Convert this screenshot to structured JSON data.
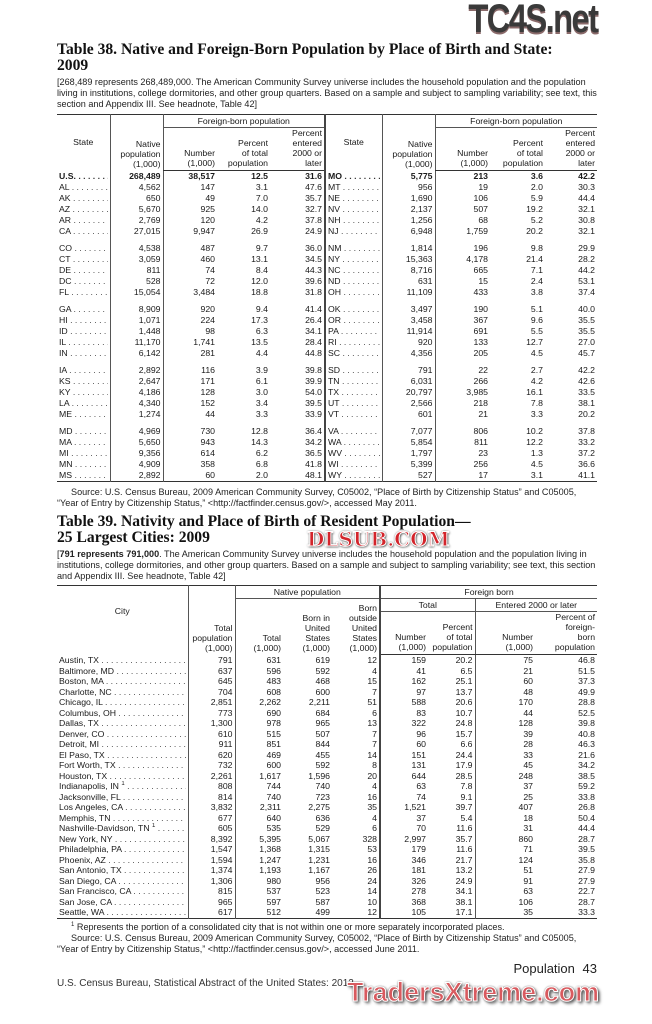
{
  "table38": {
    "title": "Table 38. Native and Foreign-Born Population by Place of Birth and State:\n2009",
    "headnote": "[268,489 represents 268,489,000. The American Community Survey universe includes the household population and the population living in institutions, college dormitories, and other group quarters. Based on a sample and subject to sampling variability; see text, this section and Appendix III. See headnote, Table 42]",
    "headers": {
      "state": "State",
      "native": "Native\npopulation\n(1,000)",
      "foreign_group": "Foreign-born population",
      "number": "Number\n(1,000)",
      "percent_total": "Percent\nof total\npopulation",
      "percent_entered": "Percent\nentered\n2000 or\nlater"
    },
    "left_groups": [
      [
        [
          "U.S.",
          "268,489",
          "38,517",
          "12.5",
          "31.6"
        ],
        [
          "AL",
          "4,562",
          "147",
          "3.1",
          "47.6"
        ],
        [
          "AK",
          "650",
          "49",
          "7.0",
          "35.7"
        ],
        [
          "AZ",
          "5,670",
          "925",
          "14.0",
          "32.7"
        ],
        [
          "AR",
          "2,769",
          "120",
          "4.2",
          "37.8"
        ],
        [
          "CA",
          "27,015",
          "9,947",
          "26.9",
          "24.9"
        ]
      ],
      [
        [
          "CO",
          "4,538",
          "487",
          "9.7",
          "36.0"
        ],
        [
          "CT",
          "3,059",
          "460",
          "13.1",
          "34.5"
        ],
        [
          "DE",
          "811",
          "74",
          "8.4",
          "44.3"
        ],
        [
          "DC",
          "528",
          "72",
          "12.0",
          "39.6"
        ],
        [
          "FL",
          "15,054",
          "3,484",
          "18.8",
          "31.8"
        ]
      ],
      [
        [
          "GA",
          "8,909",
          "920",
          "9.4",
          "41.4"
        ],
        [
          "HI",
          "1,071",
          "224",
          "17.3",
          "26.4"
        ],
        [
          "ID",
          "1,448",
          "98",
          "6.3",
          "34.1"
        ],
        [
          "IL",
          "11,170",
          "1,741",
          "13.5",
          "28.4"
        ],
        [
          "IN",
          "6,142",
          "281",
          "4.4",
          "44.8"
        ]
      ],
      [
        [
          "IA",
          "2,892",
          "116",
          "3.9",
          "39.8"
        ],
        [
          "KS",
          "2,647",
          "171",
          "6.1",
          "39.9"
        ],
        [
          "KY",
          "4,186",
          "128",
          "3.0",
          "54.0"
        ],
        [
          "LA",
          "4,340",
          "152",
          "3.4",
          "39.5"
        ],
        [
          "ME",
          "1,274",
          "44",
          "3.3",
          "33.9"
        ]
      ],
      [
        [
          "MD",
          "4,969",
          "730",
          "12.8",
          "36.4"
        ],
        [
          "MA",
          "5,650",
          "943",
          "14.3",
          "34.2"
        ],
        [
          "MI",
          "9,356",
          "614",
          "6.2",
          "36.5"
        ],
        [
          "MN",
          "4,909",
          "358",
          "6.8",
          "41.8"
        ],
        [
          "MS",
          "2,892",
          "60",
          "2.0",
          "48.1"
        ]
      ]
    ],
    "right_groups": [
      [
        [
          "MO",
          "5,775",
          "213",
          "3.6",
          "42.2"
        ],
        [
          "MT",
          "956",
          "19",
          "2.0",
          "30.3"
        ],
        [
          "NE",
          "1,690",
          "106",
          "5.9",
          "44.4"
        ],
        [
          "NV",
          "2,137",
          "507",
          "19.2",
          "32.1"
        ],
        [
          "NH",
          "1,256",
          "68",
          "5.2",
          "30.8"
        ],
        [
          "NJ",
          "6,948",
          "1,759",
          "20.2",
          "32.1"
        ]
      ],
      [
        [
          "NM",
          "1,814",
          "196",
          "9.8",
          "29.9"
        ],
        [
          "NY",
          "15,363",
          "4,178",
          "21.4",
          "28.2"
        ],
        [
          "NC",
          "8,716",
          "665",
          "7.1",
          "44.2"
        ],
        [
          "ND",
          "631",
          "15",
          "2.4",
          "53.1"
        ],
        [
          "OH",
          "11,109",
          "433",
          "3.8",
          "37.4"
        ]
      ],
      [
        [
          "OK",
          "3,497",
          "190",
          "5.1",
          "40.0"
        ],
        [
          "OR",
          "3,458",
          "367",
          "9.6",
          "35.5"
        ],
        [
          "PA",
          "11,914",
          "691",
          "5.5",
          "35.5"
        ],
        [
          "RI",
          "920",
          "133",
          "12.7",
          "27.0"
        ],
        [
          "SC",
          "4,356",
          "205",
          "4.5",
          "45.7"
        ]
      ],
      [
        [
          "SD",
          "791",
          "22",
          "2.7",
          "42.2"
        ],
        [
          "TN",
          "6,031",
          "266",
          "4.2",
          "42.6"
        ],
        [
          "TX",
          "20,797",
          "3,985",
          "16.1",
          "33.5"
        ],
        [
          "UT",
          "2,566",
          "218",
          "7.8",
          "38.1"
        ],
        [
          "VT",
          "601",
          "21",
          "3.3",
          "20.2"
        ]
      ],
      [
        [
          "VA",
          "7,077",
          "806",
          "10.2",
          "37.8"
        ],
        [
          "WA",
          "5,854",
          "811",
          "12.2",
          "33.2"
        ],
        [
          "WV",
          "1,797",
          "23",
          "1.3",
          "37.2"
        ],
        [
          "WI",
          "5,399",
          "256",
          "4.5",
          "36.6"
        ],
        [
          "WY",
          "527",
          "17",
          "3.1",
          "41.1"
        ]
      ]
    ],
    "source": "Source: U.S. Census Bureau, 2009 American Community Survey, C05002, “Place of Birth by Citizenship Status” and C05005, “Year of Entry by Citizenship Status,” <http://factfinder.census.gov/>, accessed May 2011."
  },
  "table39": {
    "title": "Table 39. Nativity and Place of Birth of Resident Population—\n25 Largest Cities: 2009",
    "headnote_bold": "791 represents 791,000",
    "headnote": ". The American Community Survey universe includes the household population and the population living in institutions, college dormitories, and other group quarters. Based on a sample and subject to sampling variability; see text, this section and Appendix III. See headnote, Table 42]",
    "headers": {
      "city": "City",
      "total_population": "Total\npopulation\n(1,000)",
      "native_group": "Native population",
      "native_total": "Total\n(1,000)",
      "born_us": "Born in\nUnited\nStates\n(1,000)",
      "born_outside": "Born\noutside\nUnited\nStates\n(1,000)",
      "foreign_group": "Foreign born",
      "total_group": "Total",
      "entered_group": "Entered 2000 or later",
      "fb_number": "Number\n(1,000)",
      "fb_percent": "Percent\nof total\npopulation",
      "en_number": "Number\n(1,000)",
      "en_percent": "Percent of\nforeign-\nborn\npopulation"
    },
    "rows": [
      [
        "Austin, TX",
        "",
        "791",
        "631",
        "619",
        "12",
        "159",
        "20.2",
        "75",
        "46.8"
      ],
      [
        "Baltimore, MD",
        "",
        "637",
        "596",
        "592",
        "4",
        "41",
        "6.5",
        "21",
        "51.5"
      ],
      [
        "Boston, MA",
        "",
        "645",
        "483",
        "468",
        "15",
        "162",
        "25.1",
        "60",
        "37.3"
      ],
      [
        "Charlotte, NC",
        "",
        "704",
        "608",
        "600",
        "7",
        "97",
        "13.7",
        "48",
        "49.9"
      ],
      [
        "Chicago, IL",
        "",
        "2,851",
        "2,262",
        "2,211",
        "51",
        "588",
        "20.6",
        "170",
        "28.8"
      ],
      [
        "Columbus, OH",
        "",
        "773",
        "690",
        "684",
        "6",
        "83",
        "10.7",
        "44",
        "52.5"
      ],
      [
        "Dallas, TX",
        "",
        "1,300",
        "978",
        "965",
        "13",
        "322",
        "24.8",
        "128",
        "39.8"
      ],
      [
        "Denver, CO",
        "",
        "610",
        "515",
        "507",
        "7",
        "96",
        "15.7",
        "39",
        "40.8"
      ],
      [
        "Detroit, MI",
        "",
        "911",
        "851",
        "844",
        "7",
        "60",
        "6.6",
        "28",
        "46.3"
      ],
      [
        "El Paso, TX",
        "",
        "620",
        "469",
        "455",
        "14",
        "151",
        "24.4",
        "33",
        "21.6"
      ],
      [
        "Fort Worth, TX",
        "",
        "732",
        "600",
        "592",
        "8",
        "131",
        "17.9",
        "45",
        "34.2"
      ],
      [
        "Houston, TX",
        "",
        "2,261",
        "1,617",
        "1,596",
        "20",
        "644",
        "28.5",
        "248",
        "38.5"
      ],
      [
        "Indianapolis, IN",
        "1",
        "808",
        "744",
        "740",
        "4",
        "63",
        "7.8",
        "37",
        "59.2"
      ],
      [
        "Jacksonville, FL",
        "",
        "814",
        "740",
        "723",
        "16",
        "74",
        "9.1",
        "25",
        "33.8"
      ],
      [
        "Los Angeles, CA",
        "",
        "3,832",
        "2,311",
        "2,275",
        "35",
        "1,521",
        "39.7",
        "407",
        "26.8"
      ],
      [
        "Memphis, TN",
        "",
        "677",
        "640",
        "636",
        "4",
        "37",
        "5.4",
        "18",
        "50.4"
      ],
      [
        "Nashville-Davidson, TN",
        "1",
        "605",
        "535",
        "529",
        "6",
        "70",
        "11.6",
        "31",
        "44.4"
      ],
      [
        "New York, NY",
        "",
        "8,392",
        "5,395",
        "5,067",
        "328",
        "2,997",
        "35.7",
        "860",
        "28.7"
      ],
      [
        "Philadelphia, PA",
        "",
        "1,547",
        "1,368",
        "1,315",
        "53",
        "179",
        "11.6",
        "71",
        "39.5"
      ],
      [
        "Phoenix, AZ",
        "",
        "1,594",
        "1,247",
        "1,231",
        "16",
        "346",
        "21.7",
        "124",
        "35.8"
      ],
      [
        "San Antonio, TX",
        "",
        "1,374",
        "1,193",
        "1,167",
        "26",
        "181",
        "13.2",
        "51",
        "27.9"
      ],
      [
        "San Diego, CA",
        "",
        "1,306",
        "980",
        "956",
        "24",
        "326",
        "24.9",
        "91",
        "27.9"
      ],
      [
        "San Francisco, CA",
        "",
        "815",
        "537",
        "523",
        "14",
        "278",
        "34.1",
        "63",
        "22.7"
      ],
      [
        "San Jose, CA",
        "",
        "965",
        "597",
        "587",
        "10",
        "368",
        "38.1",
        "106",
        "28.7"
      ],
      [
        "Seattle, WA",
        "",
        "617",
        "512",
        "499",
        "12",
        "105",
        "17.1",
        "35",
        "33.3"
      ]
    ],
    "footnote_mark": "1",
    "footnote": " Represents the portion of a consolidated city that is not within one or more separately incorporated places.",
    "source": "Source: U.S. Census Bureau, 2009 American Community Survey, C05002, “Place of Birth by Citizenship Status” and C05005, “Year of Entry by Citizenship Status,” <http://factfinder.census.gov/>, accessed June 2011."
  },
  "footer": {
    "publication": "U.S. Census Bureau, Statistical Abstract of the United States: 2012",
    "section": "Population",
    "page": "43"
  },
  "watermarks": {
    "top": "TC4S.net",
    "middle": "DLSUB.COM",
    "bottom": "TradersXtreme.com"
  }
}
